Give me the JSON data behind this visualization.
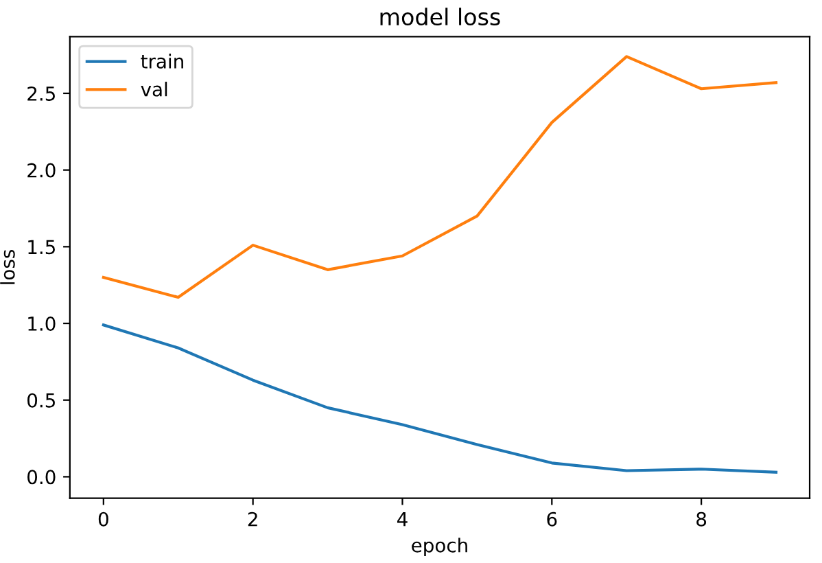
{
  "chart_data": {
    "type": "line",
    "title": "model loss",
    "xlabel": "epoch",
    "ylabel": "loss",
    "x": [
      0,
      1,
      2,
      3,
      4,
      5,
      6,
      7,
      8,
      9
    ],
    "series": [
      {
        "name": "train",
        "color": "#1f77b4",
        "values": [
          0.99,
          0.84,
          0.63,
          0.45,
          0.34,
          0.21,
          0.09,
          0.04,
          0.05,
          0.03
        ]
      },
      {
        "name": "val",
        "color": "#ff7f0e",
        "values": [
          1.3,
          1.17,
          1.51,
          1.35,
          1.44,
          1.7,
          2.31,
          2.74,
          2.53,
          2.57
        ]
      }
    ],
    "xlim": [
      -0.45,
      9.45
    ],
    "ylim": [
      -0.14,
      2.87
    ],
    "xticks": [
      0,
      2,
      4,
      6,
      8
    ],
    "yticks": [
      {
        "value": 0,
        "label": "0.0"
      },
      0.5,
      {
        "value": 1,
        "label": "1.0"
      },
      1.5,
      {
        "value": 2,
        "label": "2.0"
      },
      2.5
    ],
    "legend": "top left",
    "grid": false
  }
}
